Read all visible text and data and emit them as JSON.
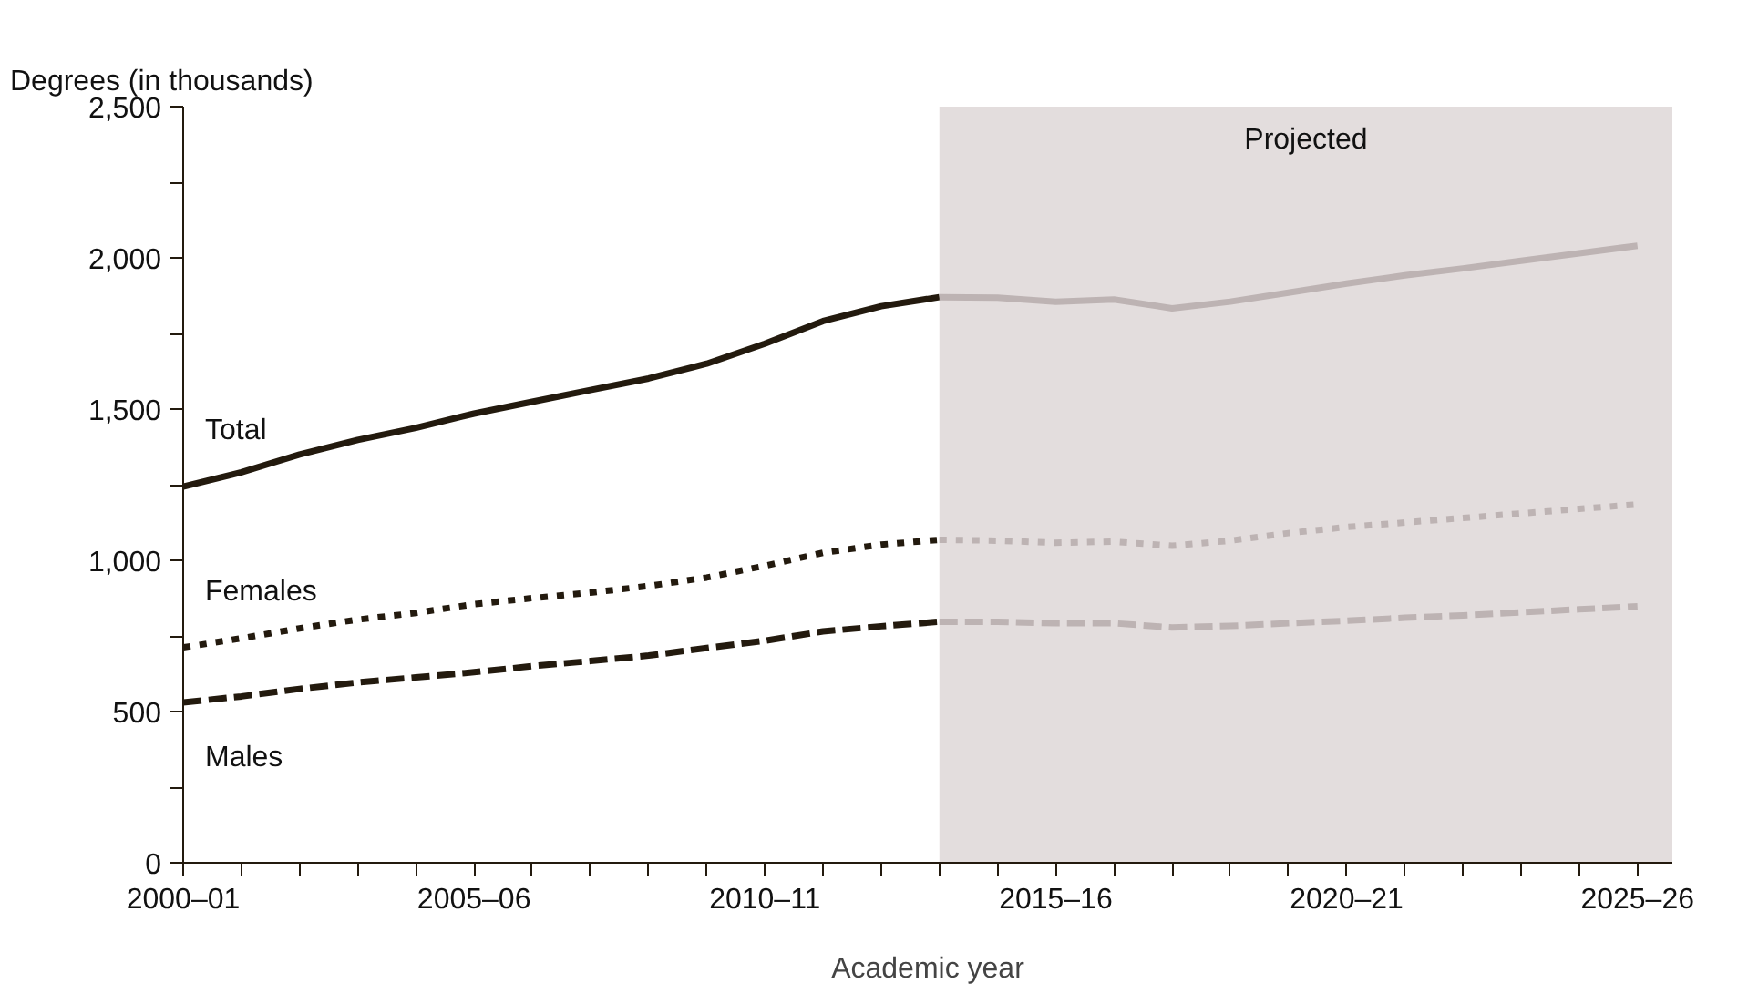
{
  "chart_data": {
    "type": "line",
    "ylabel": "Degrees (in thousands)",
    "xlabel": "Academic year",
    "categories": [
      "2000–01",
      null,
      null,
      null,
      null,
      "2005–06",
      null,
      null,
      null,
      null,
      "2010–11",
      null,
      null,
      null,
      null,
      "2015–16",
      null,
      null,
      null,
      null,
      "2020–21",
      null,
      null,
      null,
      null,
      "2025–26"
    ],
    "series": [
      {
        "name": "Total",
        "color": "#231a0e",
        "line_style": "solid",
        "values": [
          1244,
          1291,
          1350,
          1398,
          1438,
          1485,
          1524,
          1563,
          1601,
          1650,
          1716,
          1791,
          1840,
          1870,
          null,
          null,
          null,
          null,
          null,
          null,
          null,
          null,
          null,
          null,
          null,
          null
        ]
      },
      {
        "name": "Females",
        "color": "#231a0e",
        "line_style": "dotted",
        "values": [
          712,
          742,
          775,
          804,
          826,
          855,
          875,
          893,
          915,
          943,
          982,
          1025,
          1052,
          1068,
          null,
          null,
          null,
          null,
          null,
          null,
          null,
          null,
          null,
          null,
          null,
          null
        ]
      },
      {
        "name": "Males",
        "color": "#231a0e",
        "line_style": "dashed",
        "values": [
          530,
          550,
          575,
          596,
          613,
          630,
          650,
          667,
          685,
          710,
          734,
          765,
          782,
          797,
          null,
          null,
          null,
          null,
          null,
          null,
          null,
          null,
          null,
          null,
          null,
          null
        ]
      },
      {
        "color": "#bdb3b3",
        "line_style": "solid",
        "values": [
          null,
          null,
          null,
          null,
          null,
          null,
          null,
          null,
          null,
          null,
          null,
          null,
          null,
          1870,
          1868,
          1855,
          1862,
          1833,
          1855,
          1885,
          1915,
          1942,
          1965,
          1990,
          2015,
          2040
        ]
      },
      {
        "color": "#bdb3b3",
        "line_style": "dotted",
        "values": [
          null,
          null,
          null,
          null,
          null,
          null,
          null,
          null,
          null,
          null,
          null,
          null,
          null,
          1068,
          1065,
          1058,
          1062,
          1048,
          1065,
          1090,
          1110,
          1125,
          1140,
          1155,
          1170,
          1185
        ]
      },
      {
        "color": "#bdb3b3",
        "line_style": "dashed",
        "values": [
          null,
          null,
          null,
          null,
          null,
          null,
          null,
          null,
          null,
          null,
          null,
          null,
          null,
          797,
          797,
          792,
          792,
          778,
          783,
          792,
          800,
          810,
          818,
          828,
          838,
          848
        ]
      }
    ],
    "ylim": [
      0,
      2500
    ],
    "yticks": [
      {
        "value": 0,
        "label": "0"
      },
      {
        "value": 250,
        "label": null
      },
      {
        "value": 500,
        "label": "500"
      },
      {
        "value": 750,
        "label": null
      },
      {
        "value": 1000,
        "label": "1,000"
      },
      {
        "value": 1250,
        "label": null
      },
      {
        "value": 1500,
        "label": "1,500"
      },
      {
        "value": 1750,
        "label": null
      },
      {
        "value": 2000,
        "label": "2,000"
      },
      {
        "value": 2250,
        "label": null
      },
      {
        "value": 2500,
        "label": "2,500"
      }
    ],
    "annotations": [
      "Projected"
    ],
    "grid": false
  }
}
